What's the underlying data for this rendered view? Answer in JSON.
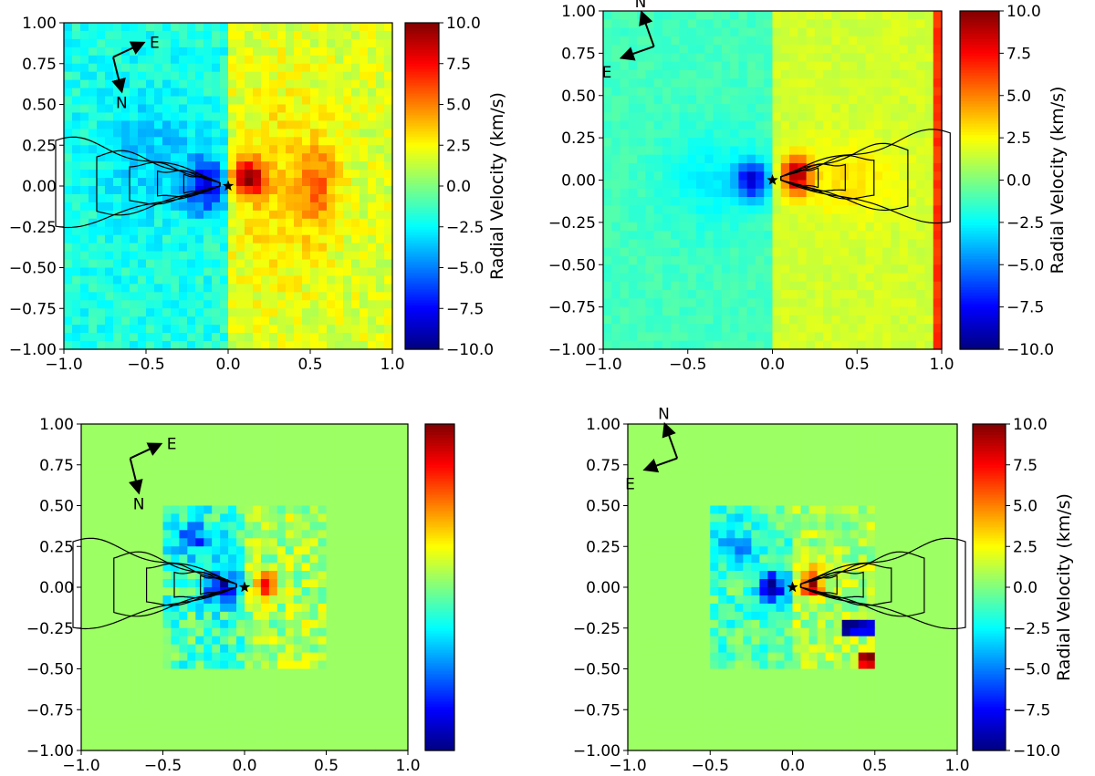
{
  "chart_data": [
    {
      "type": "heatmap",
      "panel": "top-left",
      "xlim": [
        -1.0,
        1.0
      ],
      "ylim": [
        -1.0,
        1.0
      ],
      "xticks": [
        "−1.0",
        "−0.5",
        "0.0",
        "0.5",
        "1.0"
      ],
      "yticks": [
        "1.00",
        "0.75",
        "0.50",
        "0.25",
        "0.00",
        "−0.25",
        "−0.50",
        "−0.75",
        "−1.00"
      ],
      "colorbar": {
        "vmin": -10.0,
        "vmax": 10.0,
        "label": "Radial Velocity (km/s)",
        "ticks": [
          "10.0",
          "7.5",
          "5.0",
          "2.5",
          "0.0",
          "−2.5",
          "−5.0",
          "−7.5",
          "−10.0"
        ],
        "show_ticks": true
      },
      "compass": {
        "labels": [
          "E",
          "N"
        ]
      },
      "star": [
        0.0,
        0.0
      ],
      "contour_side": "left",
      "data_extent": "full"
    },
    {
      "type": "heatmap",
      "panel": "top-right",
      "xlim": [
        -1.0,
        1.0
      ],
      "ylim": [
        -1.0,
        1.0
      ],
      "xticks": [
        "−1.0",
        "−0.5",
        "0.0",
        "0.5",
        "1.0"
      ],
      "yticks": [
        "1.00",
        "0.75",
        "0.50",
        "0.25",
        "0.00",
        "−0.25",
        "−0.50",
        "−0.75",
        "−1.00"
      ],
      "colorbar": {
        "vmin": -10.0,
        "vmax": 10.0,
        "label": "Radial Velocity (km/s)",
        "ticks": [
          "10.0",
          "7.5",
          "5.0",
          "2.5",
          "0.0",
          "−2.5",
          "−5.0",
          "−7.5",
          "−10.0"
        ],
        "show_ticks": true
      },
      "compass": {
        "labels": [
          "N",
          "E"
        ]
      },
      "star": [
        0.0,
        0.0
      ],
      "contour_side": "right",
      "data_extent": "full"
    },
    {
      "type": "heatmap",
      "panel": "bottom-left",
      "xlim": [
        -1.0,
        1.0
      ],
      "ylim": [
        -1.0,
        1.0
      ],
      "xticks": [
        "−1.0",
        "−0.5",
        "0.0",
        "0.5",
        "1.0"
      ],
      "yticks": [
        "1.00",
        "0.75",
        "0.50",
        "0.25",
        "0.00",
        "−0.25",
        "−0.50",
        "−0.75",
        "−1.00"
      ],
      "colorbar": {
        "vmin": -10.0,
        "vmax": 10.0,
        "label": "",
        "ticks": [],
        "show_ticks": false
      },
      "compass": {
        "labels": [
          "E",
          "N"
        ]
      },
      "star": [
        0.0,
        0.0
      ],
      "contour_side": "left",
      "data_extent": [
        -0.5,
        0.5
      ]
    },
    {
      "type": "heatmap",
      "panel": "bottom-right",
      "xlim": [
        -1.0,
        1.0
      ],
      "ylim": [
        -1.0,
        1.0
      ],
      "xticks": [
        "−1.0",
        "−0.5",
        "0.0",
        "0.5",
        "1.0"
      ],
      "yticks": [
        "1.00",
        "0.75",
        "0.50",
        "0.25",
        "0.00",
        "−0.25",
        "−0.50",
        "−0.75",
        "−1.00"
      ],
      "colorbar": {
        "vmin": -10.0,
        "vmax": 10.0,
        "label": "Radial Velocity (km/s)",
        "ticks": [
          "10.0",
          "7.5",
          "5.0",
          "2.5",
          "0.0",
          "−2.5",
          "−5.0",
          "−7.5",
          "−10.0"
        ],
        "show_ticks": true
      },
      "compass": {
        "labels": [
          "N",
          "E"
        ]
      },
      "star": [
        0.0,
        0.0
      ],
      "contour_side": "right",
      "data_extent": [
        -0.5,
        0.5
      ]
    }
  ]
}
